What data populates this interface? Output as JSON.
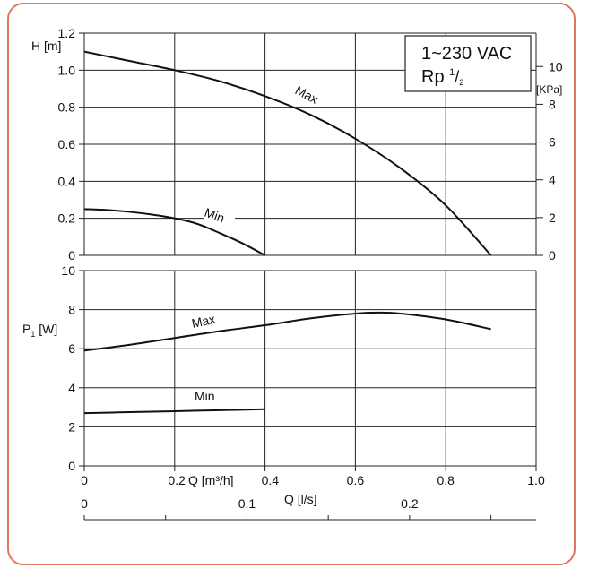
{
  "colors": {
    "frame": "#e2765a",
    "grid": "#222222",
    "curve": "#111111"
  },
  "info_box": {
    "line1": "1~230 VAC",
    "line2_prefix": "Rp ",
    "line2_num": "1",
    "line2_den": "2"
  },
  "chart_data": [
    {
      "type": "line",
      "name": "head",
      "ylabel": "H [m]",
      "y2label": "[KPa]",
      "x_unit_top": "Q [m³/h]",
      "ylim": [
        0,
        1.2
      ],
      "xlim": [
        0,
        1.0
      ],
      "y_ticks": [
        "0",
        "0.2",
        "0.4",
        "0.6",
        "0.8",
        "1.0",
        "1.2"
      ],
      "y_tick_values": [
        0,
        0.2,
        0.4,
        0.6,
        0.8,
        1.0,
        1.2
      ],
      "y2_ticks": [
        "0",
        "2",
        "4",
        "6",
        "8",
        "10"
      ],
      "y2_tick_values": [
        0,
        2,
        4,
        6,
        8,
        10
      ],
      "grid": true,
      "series": [
        {
          "name": "Max",
          "x": [
            0,
            0.1,
            0.2,
            0.3,
            0.4,
            0.5,
            0.6,
            0.7,
            0.8,
            0.9
          ],
          "y": [
            1.1,
            1.05,
            1.0,
            0.94,
            0.86,
            0.76,
            0.63,
            0.47,
            0.27,
            0.0
          ]
        },
        {
          "name": "Min",
          "x": [
            0,
            0.05,
            0.1,
            0.15,
            0.2,
            0.25,
            0.3,
            0.35,
            0.4
          ],
          "y": [
            0.25,
            0.245,
            0.235,
            0.22,
            0.2,
            0.17,
            0.12,
            0.065,
            0.0
          ]
        }
      ]
    },
    {
      "type": "line",
      "name": "power",
      "ylabel": "P",
      "ylabel_sub": "1",
      "ylabel_unit": " [W]",
      "ylim": [
        0,
        10
      ],
      "xlim": [
        0,
        1.0
      ],
      "y_ticks": [
        "0",
        "2",
        "4",
        "6",
        "8",
        "10"
      ],
      "y_tick_values": [
        0,
        2,
        4,
        6,
        8,
        10
      ],
      "x_ticks_m3h": [
        "0",
        "0.2",
        "0.4",
        "0.6",
        "0.8",
        "1.0"
      ],
      "x_tick_values_m3h": [
        0,
        0.2,
        0.4,
        0.6,
        0.8,
        1.0
      ],
      "x_unit_m3h": "Q [m³/h]",
      "x_ticks_ls": [
        "0",
        "0.1",
        "0.2"
      ],
      "x_tick_values_ls": [
        0,
        0.1,
        0.2
      ],
      "x_unit_ls": "Q [l/s]",
      "grid": true,
      "series": [
        {
          "name": "Max",
          "x": [
            0,
            0.1,
            0.2,
            0.3,
            0.4,
            0.5,
            0.6,
            0.65,
            0.7,
            0.8,
            0.9
          ],
          "y": [
            5.9,
            6.2,
            6.55,
            6.9,
            7.2,
            7.55,
            7.8,
            7.85,
            7.8,
            7.5,
            7.0
          ]
        },
        {
          "name": "Min",
          "x": [
            0,
            0.1,
            0.2,
            0.3,
            0.4
          ],
          "y": [
            2.7,
            2.75,
            2.8,
            2.85,
            2.9
          ]
        }
      ]
    }
  ]
}
